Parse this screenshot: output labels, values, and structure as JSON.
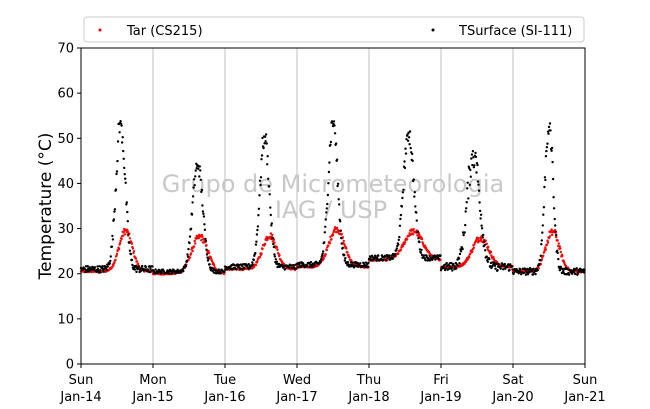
{
  "chart_data": {
    "type": "scatter",
    "xlabel": "",
    "ylabel": "Temperature (°C)",
    "ylim": [
      0,
      70
    ],
    "yticks": [
      "0",
      "10",
      "20",
      "30",
      "40",
      "50",
      "60",
      "70"
    ],
    "xlim": [
      "2021-01-14",
      "2021-01-21"
    ],
    "xticks": [
      {
        "day": "Sun",
        "date": "Jan-14"
      },
      {
        "day": "Mon",
        "date": "Jan-15"
      },
      {
        "day": "Tue",
        "date": "Jan-16"
      },
      {
        "day": "Wed",
        "date": "Jan-17"
      },
      {
        "day": "Thu",
        "date": "Jan-18"
      },
      {
        "day": "Fri",
        "date": "Jan-19"
      },
      {
        "day": "Sat",
        "date": "Jan-20"
      },
      {
        "day": "Sun",
        "date": "Jan-21"
      }
    ],
    "grid": "vertical",
    "legend": "top",
    "watermark": [
      "Grupo de Micrometeorologia",
      "IAG / USP"
    ],
    "series": [
      {
        "name": "Tar (CS215)",
        "color": "#ff0000",
        "days": [
          {
            "base": 20.5,
            "peak": 29.5,
            "peakAt": 0.62,
            "width": 0.13,
            "jitter": 0.6
          },
          {
            "base": 20.0,
            "peak": 28.2,
            "peakAt": 0.65,
            "width": 0.16,
            "jitter": 0.6
          },
          {
            "base": 21.0,
            "peak": 28.5,
            "peakAt": 0.62,
            "width": 0.14,
            "jitter": 0.6
          },
          {
            "base": 21.5,
            "peak": 30.0,
            "peakAt": 0.55,
            "width": 0.15,
            "jitter": 0.6
          },
          {
            "base": 23.0,
            "peak": 29.5,
            "peakAt": 0.62,
            "width": 0.18,
            "jitter": 0.5
          },
          {
            "base": 21.5,
            "peak": 28.0,
            "peakAt": 0.55,
            "width": 0.16,
            "jitter": 0.6
          },
          {
            "base": 20.5,
            "peak": 29.5,
            "peakAt": 0.55,
            "width": 0.13,
            "jitter": 0.7
          }
        ]
      },
      {
        "name": "TSurface (SI-111)",
        "color": "#000000",
        "days": [
          {
            "base": 21.0,
            "peak": 53.5,
            "peakAt": 0.55,
            "width": 0.09,
            "jitter": 2.5
          },
          {
            "base": 20.5,
            "peak": 44.5,
            "peakAt": 0.62,
            "width": 0.1,
            "jitter": 1.5
          },
          {
            "base": 21.5,
            "peak": 50.5,
            "peakAt": 0.55,
            "width": 0.09,
            "jitter": 2.0
          },
          {
            "base": 22.0,
            "peak": 54.0,
            "peakAt": 0.5,
            "width": 0.09,
            "jitter": 2.0
          },
          {
            "base": 23.5,
            "peak": 51.5,
            "peakAt": 0.55,
            "width": 0.1,
            "jitter": 2.0
          },
          {
            "base": 21.5,
            "peak": 47.0,
            "peakAt": 0.45,
            "width": 0.12,
            "jitter": 3.0
          },
          {
            "base": 20.5,
            "peak": 53.5,
            "peakAt": 0.5,
            "width": 0.08,
            "jitter": 2.5
          }
        ]
      }
    ]
  }
}
